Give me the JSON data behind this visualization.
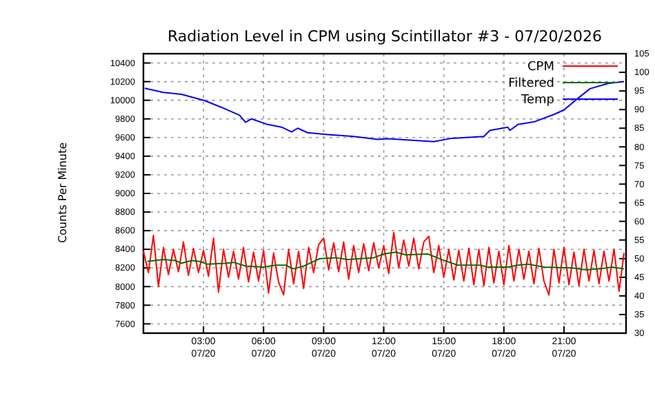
{
  "chart_data": {
    "type": "line",
    "title": "Radiation Level in CPM using Scintillator #3 - 07/20/2026",
    "ylabel": "Counts Per Minute",
    "xlim": [
      "2026-07-20T00:00",
      "2026-07-21T00:06"
    ],
    "ylim": [
      7500,
      10500
    ],
    "y2lim": [
      30,
      105
    ],
    "xticks": [
      {
        "value": "2026-07-20T03:00",
        "label": "03:00\n07/20"
      },
      {
        "value": "2026-07-20T06:00",
        "label": "06:00\n07/20"
      },
      {
        "value": "2026-07-20T09:00",
        "label": "09:00\n07/20"
      },
      {
        "value": "2026-07-20T12:00",
        "label": "12:00\n07/20"
      },
      {
        "value": "2026-07-20T15:00",
        "label": "15:00\n07/20"
      },
      {
        "value": "2026-07-20T18:00",
        "label": "18:00\n07/20"
      },
      {
        "value": "2026-07-20T21:00",
        "label": "21:00\n07/20"
      }
    ],
    "yticks": [
      7600,
      7800,
      8000,
      8200,
      8400,
      8600,
      8800,
      9000,
      9200,
      9400,
      9600,
      9800,
      10000,
      10200,
      10400
    ],
    "y2ticks": [
      30,
      35,
      40,
      45,
      50,
      55,
      60,
      65,
      70,
      75,
      80,
      85,
      90,
      95,
      100,
      105
    ],
    "grid": true,
    "legend": "top right",
    "line_style": "solid",
    "marker": "none",
    "x": [
      "2026-07-20T00:00",
      "2026-07-20T00:15",
      "2026-07-20T00:30",
      "2026-07-20T00:45",
      "2026-07-20T01:00",
      "2026-07-20T01:15",
      "2026-07-20T01:30",
      "2026-07-20T01:45",
      "2026-07-20T02:00",
      "2026-07-20T02:15",
      "2026-07-20T02:30",
      "2026-07-20T02:45",
      "2026-07-20T03:00",
      "2026-07-20T03:15",
      "2026-07-20T03:30",
      "2026-07-20T03:45",
      "2026-07-20T04:00",
      "2026-07-20T04:15",
      "2026-07-20T04:30",
      "2026-07-20T04:45",
      "2026-07-20T05:00",
      "2026-07-20T05:15",
      "2026-07-20T05:30",
      "2026-07-20T05:45",
      "2026-07-20T06:00",
      "2026-07-20T06:15",
      "2026-07-20T06:30",
      "2026-07-20T06:45",
      "2026-07-20T07:00",
      "2026-07-20T07:15",
      "2026-07-20T07:30",
      "2026-07-20T07:45",
      "2026-07-20T08:00",
      "2026-07-20T08:15",
      "2026-07-20T08:30",
      "2026-07-20T08:45",
      "2026-07-20T09:00",
      "2026-07-20T09:15",
      "2026-07-20T09:30",
      "2026-07-20T09:45",
      "2026-07-20T10:00",
      "2026-07-20T10:15",
      "2026-07-20T10:30",
      "2026-07-20T10:45",
      "2026-07-20T11:00",
      "2026-07-20T11:15",
      "2026-07-20T11:30",
      "2026-07-20T11:45",
      "2026-07-20T12:00",
      "2026-07-20T12:15",
      "2026-07-20T12:30",
      "2026-07-20T12:45",
      "2026-07-20T13:00",
      "2026-07-20T13:15",
      "2026-07-20T13:30",
      "2026-07-20T13:45",
      "2026-07-20T14:00",
      "2026-07-20T14:15",
      "2026-07-20T14:30",
      "2026-07-20T14:45",
      "2026-07-20T15:00",
      "2026-07-20T15:15",
      "2026-07-20T15:30",
      "2026-07-20T15:45",
      "2026-07-20T16:00",
      "2026-07-20T16:15",
      "2026-07-20T16:30",
      "2026-07-20T16:45",
      "2026-07-20T17:00",
      "2026-07-20T17:15",
      "2026-07-20T17:30",
      "2026-07-20T17:45",
      "2026-07-20T18:00",
      "2026-07-20T18:15",
      "2026-07-20T18:30",
      "2026-07-20T18:45",
      "2026-07-20T19:00",
      "2026-07-20T19:15",
      "2026-07-20T19:30",
      "2026-07-20T19:45",
      "2026-07-20T20:00",
      "2026-07-20T20:15",
      "2026-07-20T20:30",
      "2026-07-20T20:45",
      "2026-07-20T21:00",
      "2026-07-20T21:15",
      "2026-07-20T21:30",
      "2026-07-20T21:45",
      "2026-07-20T22:00",
      "2026-07-20T22:15",
      "2026-07-20T22:30",
      "2026-07-20T22:45",
      "2026-07-20T23:00",
      "2026-07-20T23:15",
      "2026-07-20T23:30",
      "2026-07-20T23:45",
      "2026-07-21T00:00"
    ],
    "series": [
      {
        "name": "CPM",
        "color": "#ff0000",
        "values": [
          8380,
          8150,
          8550,
          8000,
          8420,
          8130,
          8400,
          8160,
          8480,
          8120,
          8410,
          8150,
          8390,
          8110,
          8520,
          7940,
          8400,
          8100,
          8380,
          8080,
          8420,
          8050,
          8370,
          8060,
          8390,
          7930,
          8360,
          8050,
          7910,
          8400,
          8030,
          8380,
          7980,
          8420,
          8150,
          8450,
          8520,
          8180,
          8470,
          8160,
          8480,
          8080,
          8440,
          8150,
          8460,
          8170,
          8470,
          8200,
          8440,
          8140,
          8580,
          8200,
          8500,
          8220,
          8520,
          8190,
          8480,
          8540,
          8150,
          8440,
          8100,
          8400,
          8070,
          8390,
          8060,
          8410,
          8020,
          8400,
          8010,
          8420,
          8040,
          8380,
          8020,
          8440,
          8060,
          8400,
          8080,
          8380,
          8030,
          8410,
          8060,
          7910,
          8400,
          8040,
          8420,
          8020,
          8370,
          8010,
          8400,
          8060,
          8390,
          8030,
          8380,
          8060,
          8400,
          7950,
          8360
        ]
      },
      {
        "name": "Filtered",
        "color": "#007000",
        "x": [
          "2026-07-20T00:12",
          "2026-07-20T01:00",
          "2026-07-20T01:36",
          "2026-07-20T01:54",
          "2026-07-20T02:24",
          "2026-07-20T02:48",
          "2026-07-20T03:12",
          "2026-07-20T04:06",
          "2026-07-20T04:30",
          "2026-07-20T05:06",
          "2026-07-20T06:00",
          "2026-07-20T06:36",
          "2026-07-20T07:06",
          "2026-07-20T07:30",
          "2026-07-20T08:00",
          "2026-07-20T08:48",
          "2026-07-20T09:36",
          "2026-07-20T10:12",
          "2026-07-20T11:30",
          "2026-07-20T12:00",
          "2026-07-20T12:36",
          "2026-07-20T13:06",
          "2026-07-20T14:12",
          "2026-07-20T14:54",
          "2026-07-20T15:42",
          "2026-07-20T16:48",
          "2026-07-20T17:12",
          "2026-07-20T18:12",
          "2026-07-20T18:42",
          "2026-07-20T19:12",
          "2026-07-20T20:00",
          "2026-07-20T21:24",
          "2026-07-20T22:06",
          "2026-07-20T22:48",
          "2026-07-20T23:24",
          "2026-07-21T00:00"
        ],
        "values": [
          8270,
          8290,
          8280,
          8250,
          8280,
          8270,
          8240,
          8250,
          8260,
          8220,
          8210,
          8230,
          8230,
          8190,
          8220,
          8300,
          8310,
          8290,
          8310,
          8350,
          8370,
          8340,
          8350,
          8290,
          8230,
          8230,
          8210,
          8210,
          8230,
          8240,
          8210,
          8200,
          8180,
          8190,
          8210,
          8190
        ]
      },
      {
        "name": "Temp",
        "color": "#0000ff",
        "axis": "y2",
        "x": [
          "2026-07-20T00:04",
          "2026-07-20T01:00",
          "2026-07-20T01:54",
          "2026-07-20T03:04",
          "2026-07-20T03:54",
          "2026-07-20T04:48",
          "2026-07-20T05:06",
          "2026-07-20T05:24",
          "2026-07-20T06:12",
          "2026-07-20T06:54",
          "2026-07-20T07:24",
          "2026-07-20T07:42",
          "2026-07-20T08:12",
          "2026-07-20T09:12",
          "2026-07-20T10:30",
          "2026-07-20T11:42",
          "2026-07-20T12:12",
          "2026-07-20T14:30",
          "2026-07-20T15:24",
          "2026-07-20T17:00",
          "2026-07-20T17:18",
          "2026-07-20T18:12",
          "2026-07-20T18:18",
          "2026-07-20T18:42",
          "2026-07-20T19:30",
          "2026-07-20T20:30",
          "2026-07-20T21:00",
          "2026-07-20T21:36",
          "2026-07-20T22:18",
          "2026-07-20T23:12",
          "2026-07-21T00:00"
        ],
        "values": [
          95.7,
          94.6,
          94.1,
          92.4,
          90.6,
          88.5,
          86.6,
          87.5,
          86.0,
          85.3,
          84.0,
          85.0,
          83.8,
          83.3,
          82.8,
          82.0,
          82.2,
          81.4,
          82.3,
          82.8,
          84.4,
          85.3,
          84.4,
          86.0,
          86.7,
          88.7,
          89.9,
          92.6,
          95.6,
          97.0,
          97.5
        ]
      }
    ]
  }
}
